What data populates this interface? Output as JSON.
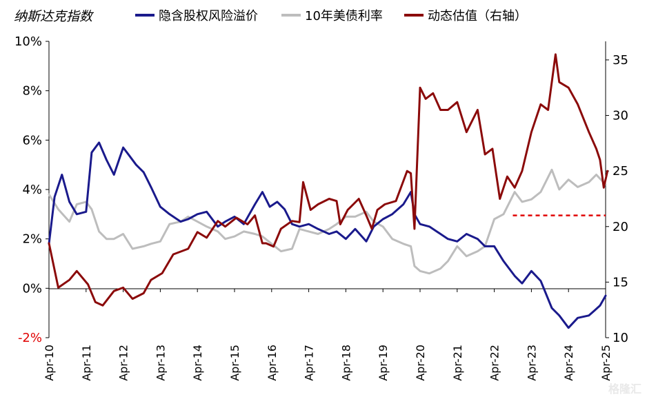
{
  "chart_data": {
    "type": "line",
    "title": "纳斯达克指数",
    "x_ticks": [
      "Apr-10",
      "Apr-11",
      "Apr-12",
      "Apr-13",
      "Apr-14",
      "Apr-15",
      "Apr-16",
      "Apr-17",
      "Apr-18",
      "Apr-19",
      "Apr-20",
      "Apr-21",
      "Apr-22",
      "Apr-23",
      "Apr-24",
      "Apr-25"
    ],
    "y_left": {
      "min": -2,
      "max": 10,
      "ticks": [
        "-2%",
        "0%",
        "2%",
        "4%",
        "6%",
        "8%",
        "10%"
      ],
      "tick_values": [
        -2,
        0,
        2,
        4,
        6,
        8,
        10
      ],
      "negative_color": "#e00000"
    },
    "y_right": {
      "min": 10,
      "max": 36.67,
      "ticks": [
        "10",
        "15",
        "20",
        "25",
        "30",
        "35"
      ],
      "tick_values": [
        10,
        15,
        20,
        25,
        30,
        35
      ]
    },
    "legend": [
      {
        "label": "隐含股权风险溢价",
        "color": "#1a1a8c"
      },
      {
        "label": "10年美债利率",
        "color": "#bdbdbd"
      },
      {
        "label": "动态估值（右轴）",
        "color": "#8b0a0a"
      }
    ],
    "series": [
      {
        "name": "隐含股权风险溢价",
        "axis": "left",
        "color": "#1a1a8c",
        "x": [
          2010.25,
          2010.4,
          2010.6,
          2010.8,
          2011.0,
          2011.25,
          2011.4,
          2011.6,
          2011.8,
          2012.0,
          2012.25,
          2012.4,
          2012.6,
          2012.8,
          2013.0,
          2013.25,
          2013.5,
          2013.8,
          2014.0,
          2014.25,
          2014.5,
          2014.8,
          2015.0,
          2015.25,
          2015.5,
          2015.8,
          2016.0,
          2016.2,
          2016.4,
          2016.6,
          2016.8,
          2017.0,
          2017.25,
          2017.5,
          2017.8,
          2018.0,
          2018.25,
          2018.5,
          2018.8,
          2019.0,
          2019.25,
          2019.5,
          2019.8,
          2020.0,
          2020.1,
          2020.25,
          2020.5,
          2020.8,
          2021.0,
          2021.25,
          2021.5,
          2021.8,
          2022.0,
          2022.25,
          2022.5,
          2022.8,
          2023.0,
          2023.25,
          2023.5,
          2023.8,
          2024.0,
          2024.25,
          2024.5,
          2024.8,
          2024.95,
          2025.1,
          2025.25
        ],
        "y": [
          1.8,
          3.7,
          4.6,
          3.5,
          3.0,
          3.1,
          5.5,
          5.9,
          5.2,
          4.6,
          5.7,
          5.4,
          5.0,
          4.7,
          4.1,
          3.3,
          3.0,
          2.7,
          2.8,
          3.0,
          3.1,
          2.5,
          2.7,
          2.9,
          2.6,
          3.4,
          3.9,
          3.3,
          3.5,
          3.2,
          2.6,
          2.5,
          2.6,
          2.4,
          2.2,
          2.3,
          2.0,
          2.4,
          1.9,
          2.5,
          2.8,
          3.0,
          3.4,
          3.9,
          3.0,
          2.6,
          2.5,
          2.2,
          2.0,
          1.9,
          2.2,
          2.0,
          1.7,
          1.7,
          1.1,
          0.5,
          0.2,
          0.7,
          0.3,
          -0.8,
          -1.1,
          -1.6,
          -1.2,
          -1.1,
          -0.9,
          -0.7,
          -0.3
        ]
      },
      {
        "name": "10年美债利率",
        "axis": "left",
        "color": "#bdbdbd",
        "x": [
          2010.25,
          2010.5,
          2010.8,
          2011.0,
          2011.25,
          2011.4,
          2011.6,
          2011.8,
          2012.0,
          2012.25,
          2012.5,
          2012.8,
          2013.0,
          2013.25,
          2013.5,
          2013.8,
          2014.0,
          2014.25,
          2014.5,
          2014.8,
          2015.0,
          2015.25,
          2015.5,
          2015.8,
          2016.0,
          2016.25,
          2016.5,
          2016.8,
          2017.0,
          2017.25,
          2017.5,
          2017.8,
          2018.0,
          2018.25,
          2018.5,
          2018.8,
          2019.0,
          2019.25,
          2019.5,
          2019.8,
          2020.0,
          2020.1,
          2020.25,
          2020.5,
          2020.8,
          2021.0,
          2021.25,
          2021.5,
          2021.8,
          2022.0,
          2022.25,
          2022.5,
          2022.8,
          2023.0,
          2023.25,
          2023.5,
          2023.8,
          2024.0,
          2024.25,
          2024.5,
          2024.8,
          2025.0,
          2025.25
        ],
        "y": [
          3.8,
          3.2,
          2.7,
          3.4,
          3.5,
          3.2,
          2.3,
          2.0,
          2.0,
          2.2,
          1.6,
          1.7,
          1.8,
          1.9,
          2.6,
          2.7,
          2.9,
          2.7,
          2.5,
          2.3,
          2.0,
          2.1,
          2.3,
          2.2,
          2.1,
          1.8,
          1.5,
          1.6,
          2.4,
          2.3,
          2.2,
          2.4,
          2.6,
          2.9,
          2.9,
          3.1,
          2.7,
          2.5,
          2.0,
          1.8,
          1.7,
          0.9,
          0.7,
          0.6,
          0.8,
          1.1,
          1.7,
          1.3,
          1.5,
          1.7,
          2.8,
          3.0,
          3.9,
          3.5,
          3.6,
          3.9,
          4.8,
          4.0,
          4.4,
          4.1,
          4.3,
          4.6,
          4.2
        ]
      },
      {
        "name": "动态估值（右轴）",
        "axis": "right",
        "color": "#8b0a0a",
        "x": [
          2010.25,
          2010.5,
          2010.8,
          2011.0,
          2011.3,
          2011.5,
          2011.7,
          2012.0,
          2012.25,
          2012.5,
          2012.8,
          2013.0,
          2013.3,
          2013.6,
          2014.0,
          2014.25,
          2014.5,
          2014.8,
          2015.0,
          2015.3,
          2015.6,
          2015.8,
          2016.0,
          2016.1,
          2016.3,
          2016.5,
          2016.8,
          2017.0,
          2017.1,
          2017.3,
          2017.5,
          2017.8,
          2018.0,
          2018.1,
          2018.3,
          2018.6,
          2018.8,
          2018.95,
          2019.1,
          2019.3,
          2019.6,
          2019.9,
          2020.0,
          2020.1,
          2020.25,
          2020.4,
          2020.6,
          2020.8,
          2021.0,
          2021.25,
          2021.5,
          2021.8,
          2022.0,
          2022.2,
          2022.4,
          2022.6,
          2022.8,
          2023.0,
          2023.25,
          2023.5,
          2023.7,
          2023.9,
          2024.0,
          2024.25,
          2024.5,
          2024.8,
          2025.0,
          2025.1,
          2025.2,
          2025.3
        ],
        "y": [
          18.5,
          14.5,
          15.2,
          16.0,
          14.8,
          13.2,
          12.9,
          14.2,
          14.5,
          13.5,
          14.0,
          15.2,
          15.8,
          17.5,
          18.0,
          19.5,
          19.0,
          20.5,
          20.0,
          20.8,
          20.2,
          21.0,
          18.5,
          18.5,
          18.2,
          19.8,
          20.5,
          20.4,
          24.0,
          21.5,
          22.0,
          22.5,
          22.3,
          20.2,
          21.5,
          22.5,
          21.0,
          19.8,
          21.5,
          22.0,
          22.3,
          25.0,
          24.8,
          19.8,
          32.5,
          31.5,
          32.0,
          30.5,
          30.5,
          31.2,
          28.5,
          30.5,
          26.5,
          27.0,
          22.5,
          24.5,
          23.5,
          25.0,
          28.5,
          31.0,
          30.5,
          35.5,
          33.0,
          32.5,
          31.0,
          28.5,
          27.0,
          26.0,
          23.5,
          25.0
        ]
      }
    ],
    "reference_line": {
      "axis": "right",
      "value": 21.0,
      "x_start": 2022.75,
      "x_end": 2025.25,
      "style": "dashed",
      "color": "#e00000"
    },
    "grid": false,
    "legend_position": "top"
  },
  "watermark": "格隆汇"
}
